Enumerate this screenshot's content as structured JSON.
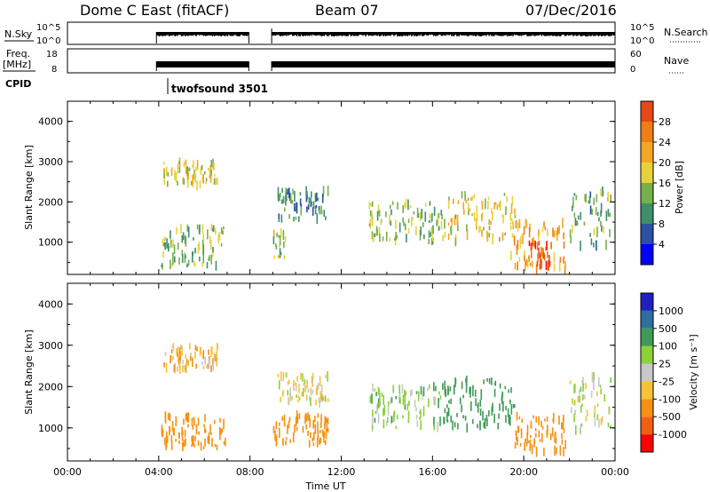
{
  "header": {
    "station": "Dome C East (fitACF)",
    "beam": "Beam 07",
    "date": "07/Dec/2016"
  },
  "status_panels": {
    "nsky_label": "N.Sky",
    "nsky_ticks": [
      "10^5",
      "10^0"
    ],
    "nsearch_label": "N.Search",
    "nsearch_ticks": [
      "10^5",
      "10^0"
    ],
    "freq_label": "Freq.",
    "freq_unit": "[MHz]",
    "freq_ticks": [
      "18",
      "8"
    ],
    "nave_label": "Nave",
    "nave_ticks": [
      "60",
      "0"
    ],
    "cpid_label": "CPID",
    "cpid_value": "twofsound 3501"
  },
  "colors": {
    "power": [
      "#0000ff",
      "#2b50a5",
      "#3f8f6b",
      "#76b04a",
      "#e8d23a",
      "#f5a623",
      "#f07e16",
      "#e64818",
      "#ff0000"
    ],
    "velocity": [
      "#ff0000",
      "#f06010",
      "#f59010",
      "#f5c23a",
      "#c8c8c8",
      "#8bd13a",
      "#3f9a55",
      "#2f6f9e",
      "#2020c0"
    ]
  },
  "chart_data": [
    {
      "type": "heatmap",
      "quantity": "power",
      "xlabel": "",
      "ylabel": "Slant Range [km]",
      "yticks": [
        "1000",
        "2000",
        "3000",
        "4000"
      ],
      "ylim": [
        200,
        4500
      ],
      "xlim": [
        0,
        24
      ],
      "colorbar_label": "Power [dB]",
      "colorbar_ticks": [
        "4",
        "8",
        "12",
        "16",
        "20",
        "24",
        "28"
      ],
      "colorbar_range": [
        0,
        32
      ],
      "data_gaps_hours": [
        [
          0,
          3.9
        ],
        [
          7.95,
          8.95
        ]
      ],
      "echo_regions": [
        {
          "t0": 4.1,
          "t1": 6.9,
          "r0": 400,
          "r1": 1400,
          "value": 14
        },
        {
          "t0": 4.2,
          "t1": 6.6,
          "r0": 2400,
          "r1": 3000,
          "value": 18
        },
        {
          "t0": 9.0,
          "t1": 9.6,
          "r0": 600,
          "r1": 1300,
          "value": 16
        },
        {
          "t0": 9.2,
          "t1": 11.4,
          "r0": 1500,
          "r1": 2300,
          "value": 10
        },
        {
          "t0": 13.2,
          "t1": 16.4,
          "r0": 1000,
          "r1": 2000,
          "value": 14
        },
        {
          "t0": 16.4,
          "t1": 19.6,
          "r0": 1000,
          "r1": 2200,
          "value": 18
        },
        {
          "t0": 19.4,
          "t1": 21.8,
          "r0": 300,
          "r1": 1500,
          "value": 22
        },
        {
          "t0": 20.2,
          "t1": 21.2,
          "r0": 400,
          "r1": 1000,
          "value": 28
        },
        {
          "t0": 22.0,
          "t1": 23.8,
          "r0": 900,
          "r1": 2300,
          "value": 12
        }
      ]
    },
    {
      "type": "heatmap",
      "quantity": "velocity",
      "xlabel": "Time UT",
      "ylabel": "Slant Range [km]",
      "xticks": [
        "00:00",
        "04:00",
        "08:00",
        "12:00",
        "16:00",
        "20:00",
        "00:00"
      ],
      "yticks": [
        "1000",
        "2000",
        "3000",
        "4000"
      ],
      "ylim": [
        200,
        4500
      ],
      "xlim": [
        0,
        24
      ],
      "colorbar_label": "Velocity [m s⁻¹]",
      "colorbar_ticks": [
        "1000",
        "500",
        "100",
        "25",
        "-25",
        "-100",
        "-500",
        "-1000"
      ],
      "data_gaps_hours": [
        [
          0,
          3.9
        ],
        [
          7.95,
          8.95
        ]
      ],
      "echo_regions": [
        {
          "t0": 4.1,
          "t1": 6.9,
          "r0": 500,
          "r1": 1300,
          "value": -300
        },
        {
          "t0": 4.2,
          "t1": 6.6,
          "r0": 2400,
          "r1": 3000,
          "value": -80
        },
        {
          "t0": 9.0,
          "t1": 11.4,
          "r0": 600,
          "r1": 1300,
          "value": -400
        },
        {
          "t0": 9.2,
          "t1": 11.4,
          "r0": 1600,
          "r1": 2300,
          "value": -20
        },
        {
          "t0": 13.2,
          "t1": 16.4,
          "r0": 1000,
          "r1": 2000,
          "value": 60
        },
        {
          "t0": 16.4,
          "t1": 19.6,
          "r0": 1000,
          "r1": 2200,
          "value": 400
        },
        {
          "t0": 19.4,
          "t1": 21.8,
          "r0": 400,
          "r1": 1300,
          "value": -300
        },
        {
          "t0": 22.0,
          "t1": 23.8,
          "r0": 900,
          "r1": 2300,
          "value": 20
        }
      ]
    }
  ]
}
